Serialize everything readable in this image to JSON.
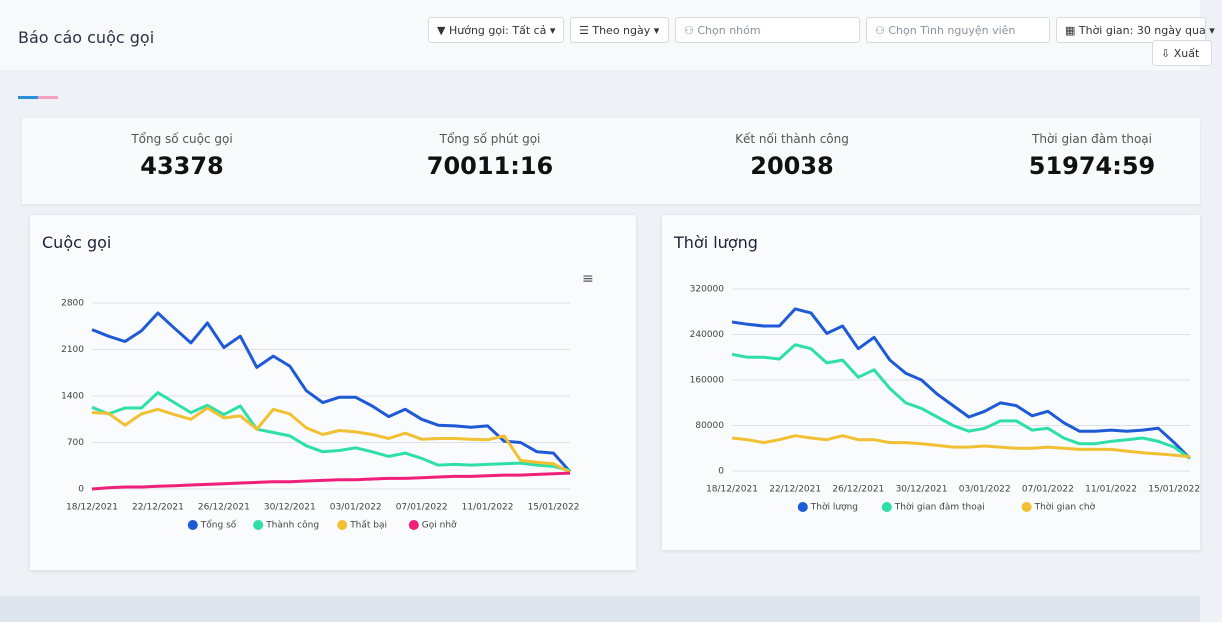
{
  "header": {
    "title": "Báo cáo cuộc gọi",
    "filters": [
      "Hướng gọi: Tất cả",
      "Theo ngày",
      "Chọn nhóm",
      "Chọn Tình nguyện viên",
      "Thời gian: 30 ngày qua"
    ],
    "export": "Xuất"
  },
  "stats": [
    {
      "label": "Tổng số cuộc gọi",
      "value": 43378
    },
    {
      "label": "Tổng số phút gọi",
      "value": "70011:16"
    },
    {
      "label": "Kết nối thành công",
      "value": 20038
    },
    {
      "label": "Thời gian đàm thoại",
      "value": "51974:59"
    }
  ],
  "chart_data": [
    {
      "type": "line",
      "title": "Cuộc gọi",
      "categories": [
        "18/12/2021",
        null,
        null,
        null,
        "22/12/2021",
        null,
        null,
        null,
        "26/12/2021",
        null,
        null,
        null,
        "30/12/2021",
        null,
        null,
        null,
        "03/01/2022",
        null,
        null,
        null,
        "07/01/2022",
        null,
        null,
        null,
        "11/01/2022",
        null,
        null,
        null,
        "15/01/2022",
        null
      ],
      "ylim": [
        0,
        2800
      ],
      "yticks": [
        0,
        700,
        1400,
        2100,
        2800
      ],
      "grid": true,
      "legend": "bottom",
      "series": [
        {
          "name": "Tổng số",
          "color": "#1f5ad6",
          "values": [
            2400,
            2300,
            2220,
            2380,
            2650,
            2420,
            2200,
            2500,
            2130,
            2300,
            1830,
            2000,
            1850,
            1480,
            1300,
            1380,
            1380,
            1250,
            1090,
            1200,
            1050,
            960,
            950,
            930,
            950,
            720,
            700,
            560,
            540,
            260
          ]
        },
        {
          "name": "Thành công",
          "color": "#2ee0a8",
          "values": [
            1230,
            1130,
            1220,
            1220,
            1450,
            1300,
            1150,
            1260,
            1120,
            1250,
            900,
            850,
            800,
            650,
            560,
            580,
            620,
            560,
            490,
            540,
            460,
            360,
            370,
            360,
            370,
            380,
            390,
            360,
            340,
            280
          ]
        },
        {
          "name": "Thất bại",
          "color": "#f2c033",
          "values": [
            1150,
            1140,
            960,
            1130,
            1200,
            1120,
            1050,
            1220,
            1070,
            1100,
            900,
            1200,
            1130,
            920,
            820,
            880,
            860,
            820,
            760,
            840,
            750,
            760,
            760,
            750,
            740,
            800,
            430,
            400,
            380,
            250
          ]
        },
        {
          "name": "Gọi nhỡ",
          "color": "#f0207a",
          "values": [
            0,
            20,
            30,
            30,
            40,
            50,
            60,
            70,
            80,
            90,
            100,
            110,
            110,
            120,
            130,
            140,
            140,
            150,
            160,
            160,
            170,
            180,
            190,
            190,
            200,
            210,
            210,
            220,
            230,
            240
          ]
        }
      ]
    },
    {
      "type": "line",
      "title": "Thời lượng",
      "categories": [
        "18/12/2021",
        null,
        null,
        null,
        "22/12/2021",
        null,
        null,
        null,
        "26/12/2021",
        null,
        null,
        null,
        "30/12/2021",
        null,
        null,
        null,
        "03/01/2022",
        null,
        null,
        null,
        "07/01/2022",
        null,
        null,
        null,
        "11/01/2022",
        null,
        null,
        null,
        "15/01/2022",
        null
      ],
      "ylim": [
        0,
        320000
      ],
      "yticks": [
        0,
        80000,
        160000,
        240000,
        320000
      ],
      "grid": true,
      "legend": "bottom",
      "series": [
        {
          "name": "Thời lượng",
          "color": "#1f5ad6",
          "values": [
            262000,
            258000,
            255000,
            255000,
            285000,
            278000,
            242000,
            255000,
            215000,
            235000,
            195000,
            172000,
            160000,
            135000,
            115000,
            95000,
            105000,
            120000,
            115000,
            97000,
            105000,
            85000,
            70000,
            70000,
            72000,
            70000,
            72000,
            75000,
            50000,
            22000
          ]
        },
        {
          "name": "Thời gian đàm thoại",
          "color": "#2ee0a8",
          "values": [
            205000,
            200000,
            200000,
            197000,
            222000,
            215000,
            190000,
            195000,
            165000,
            178000,
            145000,
            120000,
            110000,
            95000,
            80000,
            70000,
            75000,
            88000,
            88000,
            72000,
            75000,
            58000,
            48000,
            48000,
            52000,
            55000,
            58000,
            52000,
            42000,
            22000
          ]
        },
        {
          "name": "Thời gian chờ",
          "color": "#f2c033",
          "values": [
            58000,
            55000,
            50000,
            55000,
            62000,
            58000,
            55000,
            62000,
            55000,
            55000,
            50000,
            50000,
            48000,
            45000,
            42000,
            42000,
            44000,
            42000,
            40000,
            40000,
            42000,
            40000,
            38000,
            38000,
            38000,
            35000,
            32000,
            30000,
            28000,
            25000
          ]
        }
      ]
    }
  ]
}
